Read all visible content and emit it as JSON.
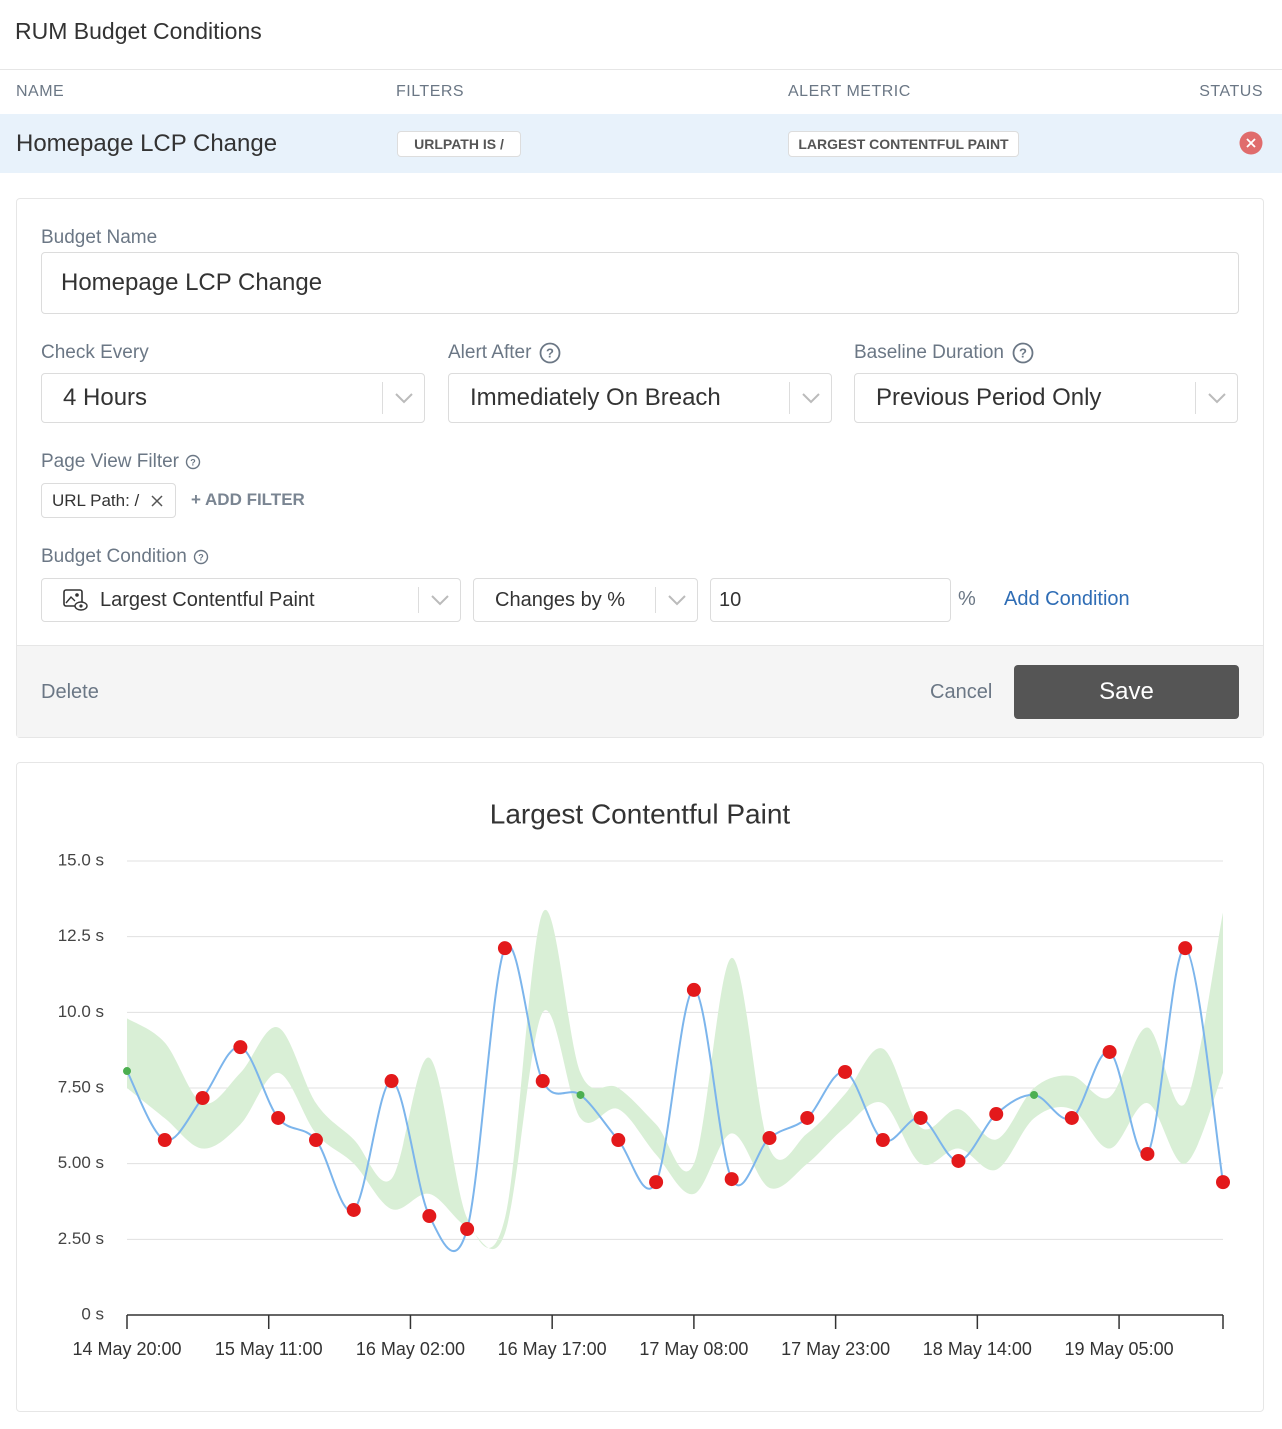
{
  "header": {
    "title": "RUM Budget Conditions"
  },
  "table": {
    "columns": [
      "NAME",
      "FILTERS",
      "ALERT METRIC",
      "STATUS"
    ],
    "rows": [
      [
        "Homepage LCP Change",
        "URLPATH IS /",
        "LARGEST CONTENTFUL PAINT"
      ]
    ]
  },
  "form": {
    "budget_name_label": "Budget Name",
    "budget_name": "Homepage LCP Change",
    "check_every_label": "Check Every",
    "check_every": "4 Hours",
    "alert_after_label": "Alert After",
    "alert_after": "Immediately On Breach",
    "baseline_label": "Baseline Duration",
    "baseline": "Previous Period Only",
    "page_view_filter_label": "Page View Filter",
    "filter_chip": "URL Path: /",
    "add_filter": "+ ADD FILTER",
    "budget_condition_label": "Budget Condition",
    "metric": "Largest Contentful Paint",
    "operator": "Changes by %",
    "amount": "10",
    "unit": "%",
    "add_condition": "Add Condition",
    "delete": "Delete",
    "cancel": "Cancel",
    "save": "Save"
  },
  "chart_data": {
    "type": "line",
    "title": "Largest Contentful Paint",
    "x": [
      0,
      4,
      8,
      12,
      16,
      20,
      24,
      28,
      32,
      36,
      40,
      44,
      48,
      52,
      56,
      60,
      64,
      68,
      72,
      76,
      80,
      84,
      88,
      92,
      96,
      100,
      104,
      108,
      112,
      116
    ],
    "xlim": [
      0,
      116
    ],
    "xticks": [
      {
        "value": 0,
        "label": "14 May 20:00"
      },
      {
        "value": 15,
        "label": "15 May 11:00"
      },
      {
        "value": 30,
        "label": "16 May 02:00"
      },
      {
        "value": 45,
        "label": "16 May 17:00"
      },
      {
        "value": 60,
        "label": "17 May 08:00"
      },
      {
        "value": 75,
        "label": "17 May 23:00"
      },
      {
        "value": 90,
        "label": "18 May 14:00"
      },
      {
        "value": 105,
        "label": "19 May 05:00"
      }
    ],
    "ylim": [
      0,
      15
    ],
    "yticks": [
      {
        "value": 0,
        "label": "0 s"
      },
      {
        "value": 2.5,
        "label": "2.50 s"
      },
      {
        "value": 5,
        "label": "5.00 s"
      },
      {
        "value": 7.5,
        "label": "7.50 s"
      },
      {
        "value": 10,
        "label": "10.0 s"
      },
      {
        "value": 12.5,
        "label": "12.5 s"
      },
      {
        "value": 15,
        "label": "15.0 s"
      }
    ],
    "grid": true,
    "band": {
      "color": "#d9efd6",
      "lower": [
        7.5,
        6.5,
        5.5,
        6.3,
        8.0,
        6.0,
        5.0,
        3.5,
        4.0,
        2.9,
        2.7,
        10.0,
        6.5,
        6.8,
        5.3,
        4.0,
        6.0,
        4.2,
        5.0,
        6.2,
        7.0,
        5.0,
        5.5,
        4.8,
        6.5,
        6.8,
        5.5,
        7.0,
        5.0,
        8.0
      ],
      "upper": [
        9.8,
        9.0,
        7.0,
        8.0,
        9.5,
        7.0,
        5.8,
        4.5,
        8.5,
        3.2,
        3.2,
        13.3,
        8.0,
        7.5,
        6.3,
        5.0,
        11.8,
        5.5,
        6.0,
        7.3,
        8.8,
        6.2,
        6.8,
        5.8,
        7.5,
        7.9,
        7.2,
        9.5,
        7.0,
        13.3
      ]
    },
    "series": [
      {
        "color": "#7cb5ec",
        "breach_color": "#e3191b",
        "ok_color": "#4caf50",
        "values": [
          8.06,
          5.78,
          7.17,
          8.85,
          6.51,
          5.78,
          3.47,
          7.73,
          3.27,
          2.84,
          12.12,
          7.73,
          7.27,
          5.78,
          4.39,
          10.74,
          4.49,
          5.85,
          6.51,
          8.03,
          5.78,
          6.51,
          5.09,
          6.64,
          7.27,
          6.51,
          8.69,
          5.32,
          12.12,
          4.39
        ]
      }
    ]
  }
}
